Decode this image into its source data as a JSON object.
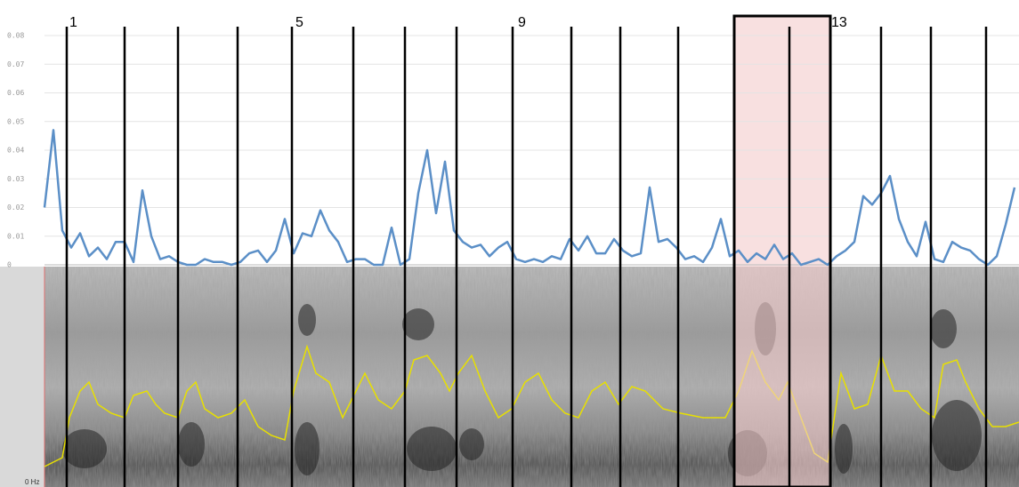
{
  "chart_data": {
    "type": "line",
    "ylim": [
      0,
      0.08
    ],
    "yticks": [
      0,
      0.01,
      0.02,
      0.03,
      0.04,
      0.05,
      0.06,
      0.07,
      0.08
    ],
    "grid": true,
    "color": "#5b8fc7",
    "values": [
      0.02,
      0.047,
      0.012,
      0.006,
      0.011,
      0.003,
      0.006,
      0.002,
      0.008,
      0.008,
      0.001,
      0.026,
      0.01,
      0.002,
      0.003,
      0.001,
      0,
      0,
      0.002,
      0.001,
      0.001,
      0,
      0.001,
      0.004,
      0.005,
      0.001,
      0.005,
      0.016,
      0.004,
      0.011,
      0.01,
      0.019,
      0.012,
      0.008,
      0.001,
      0.002,
      0.002,
      0,
      0,
      0.013,
      0,
      0.002,
      0.025,
      0.04,
      0.018,
      0.036,
      0.012,
      0.008,
      0.006,
      0.007,
      0.003,
      0.006,
      0.008,
      0.002,
      0.001,
      0.002,
      0.001,
      0.003,
      0.002,
      0.009,
      0.005,
      0.01,
      0.004,
      0.004,
      0.009,
      0.005,
      0.003,
      0.004,
      0.027,
      0.008,
      0.009,
      0.006,
      0.002,
      0.003,
      0.001,
      0.006,
      0.016,
      0.003,
      0.005,
      0.001,
      0.004,
      0.002,
      0.007,
      0.002,
      0.004,
      0,
      0.001,
      0.002,
      0,
      0.003,
      0.005,
      0.008,
      0.024,
      0.021,
      0.025,
      0.031,
      0.016,
      0.008,
      0.003,
      0.015,
      0.002,
      0.001,
      0.008,
      0.006,
      0.005,
      0.002,
      0,
      0.003,
      0.014,
      0.027
    ],
    "segment_labels": [
      "1",
      "5",
      "9",
      "13"
    ],
    "frequency_label": "0 Hz"
  }
}
